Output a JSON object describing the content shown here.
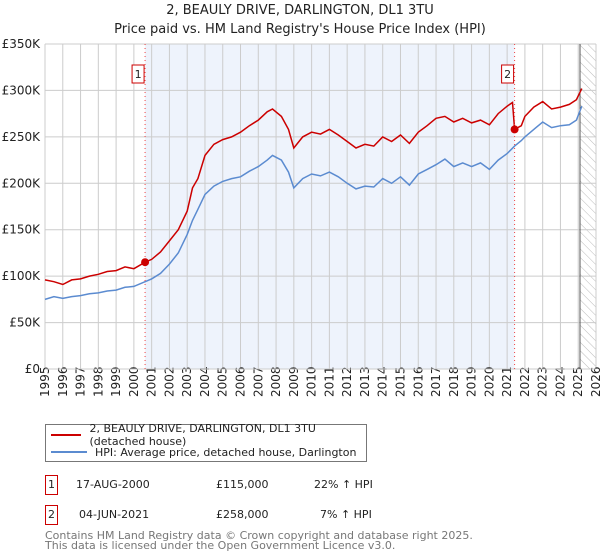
{
  "title": "2, BEAULY DRIVE, DARLINGTON, DL1 3TU",
  "subtitle": "Price paid vs. HM Land Registry's House Price Index (HPI)",
  "chart_data": {
    "type": "line",
    "xlim": [
      1995,
      2026
    ],
    "ylim": [
      0,
      350000
    ],
    "yticks": [
      0,
      50000,
      100000,
      150000,
      200000,
      250000,
      300000,
      350000
    ],
    "ytick_labels": [
      "£0",
      "£50K",
      "£100K",
      "£150K",
      "£200K",
      "£250K",
      "£300K",
      "£350K"
    ],
    "xticks": [
      "1995",
      "1996",
      "1997",
      "1998",
      "1999",
      "2000",
      "2001",
      "2002",
      "2003",
      "2004",
      "2005",
      "2006",
      "2007",
      "2008",
      "2009",
      "2010",
      "2011",
      "2012",
      "2013",
      "2014",
      "2015",
      "2016",
      "2017",
      "2018",
      "2019",
      "2020",
      "2021",
      "2022",
      "2023",
      "2024",
      "2025",
      "2026"
    ],
    "shaded_range": [
      2000.63,
      2021.42
    ],
    "hatched_from": 2025.1,
    "series": [
      {
        "name": "2, BEAULY DRIVE, DARLINGTON, DL1 3TU (detached house)",
        "color": "#cc0000",
        "points": [
          [
            1995,
            96000
          ],
          [
            1995.5,
            94000
          ],
          [
            1996,
            91000
          ],
          [
            1996.5,
            96000
          ],
          [
            1997,
            97000
          ],
          [
            1997.5,
            100000
          ],
          [
            1998,
            102000
          ],
          [
            1998.5,
            105000
          ],
          [
            1999,
            106000
          ],
          [
            1999.5,
            110000
          ],
          [
            2000,
            108000
          ],
          [
            2000.63,
            115000
          ],
          [
            2001,
            118000
          ],
          [
            2001.5,
            126000
          ],
          [
            2002,
            138000
          ],
          [
            2002.5,
            150000
          ],
          [
            2003,
            170000
          ],
          [
            2003.3,
            195000
          ],
          [
            2003.6,
            205000
          ],
          [
            2004,
            230000
          ],
          [
            2004.5,
            242000
          ],
          [
            2005,
            247000
          ],
          [
            2005.5,
            250000
          ],
          [
            2006,
            255000
          ],
          [
            2006.5,
            262000
          ],
          [
            2007,
            268000
          ],
          [
            2007.5,
            277000
          ],
          [
            2007.8,
            280000
          ],
          [
            2008.3,
            272000
          ],
          [
            2008.7,
            258000
          ],
          [
            2009,
            238000
          ],
          [
            2009.5,
            250000
          ],
          [
            2010,
            255000
          ],
          [
            2010.5,
            253000
          ],
          [
            2011,
            258000
          ],
          [
            2011.5,
            252000
          ],
          [
            2012,
            245000
          ],
          [
            2012.5,
            238000
          ],
          [
            2013,
            242000
          ],
          [
            2013.5,
            240000
          ],
          [
            2014,
            250000
          ],
          [
            2014.5,
            245000
          ],
          [
            2015,
            252000
          ],
          [
            2015.5,
            243000
          ],
          [
            2016,
            255000
          ],
          [
            2016.5,
            262000
          ],
          [
            2017,
            270000
          ],
          [
            2017.5,
            272000
          ],
          [
            2018,
            266000
          ],
          [
            2018.5,
            270000
          ],
          [
            2019,
            265000
          ],
          [
            2019.5,
            268000
          ],
          [
            2020,
            263000
          ],
          [
            2020.5,
            275000
          ],
          [
            2021,
            283000
          ],
          [
            2021.3,
            287000
          ],
          [
            2021.42,
            258000
          ],
          [
            2021.8,
            262000
          ],
          [
            2022,
            272000
          ],
          [
            2022.5,
            282000
          ],
          [
            2023,
            288000
          ],
          [
            2023.5,
            280000
          ],
          [
            2024,
            282000
          ],
          [
            2024.5,
            285000
          ],
          [
            2024.9,
            290000
          ],
          [
            2025.2,
            302000
          ]
        ]
      },
      {
        "name": "HPI: Average price, detached house, Darlington",
        "color": "#5b8bd0",
        "points": [
          [
            1995,
            75000
          ],
          [
            1995.5,
            78000
          ],
          [
            1996,
            76000
          ],
          [
            1996.5,
            78000
          ],
          [
            1997,
            79000
          ],
          [
            1997.5,
            81000
          ],
          [
            1998,
            82000
          ],
          [
            1998.5,
            84000
          ],
          [
            1999,
            85000
          ],
          [
            1999.5,
            88000
          ],
          [
            2000,
            89000
          ],
          [
            2000.63,
            94000
          ],
          [
            2001,
            97000
          ],
          [
            2001.5,
            103000
          ],
          [
            2002,
            113000
          ],
          [
            2002.5,
            125000
          ],
          [
            2003,
            145000
          ],
          [
            2003.3,
            160000
          ],
          [
            2003.6,
            172000
          ],
          [
            2004,
            188000
          ],
          [
            2004.5,
            197000
          ],
          [
            2005,
            202000
          ],
          [
            2005.5,
            205000
          ],
          [
            2006,
            207000
          ],
          [
            2006.5,
            213000
          ],
          [
            2007,
            218000
          ],
          [
            2007.5,
            225000
          ],
          [
            2007.8,
            230000
          ],
          [
            2008.3,
            225000
          ],
          [
            2008.7,
            212000
          ],
          [
            2009,
            195000
          ],
          [
            2009.5,
            205000
          ],
          [
            2010,
            210000
          ],
          [
            2010.5,
            208000
          ],
          [
            2011,
            212000
          ],
          [
            2011.5,
            207000
          ],
          [
            2012,
            200000
          ],
          [
            2012.5,
            194000
          ],
          [
            2013,
            197000
          ],
          [
            2013.5,
            196000
          ],
          [
            2014,
            205000
          ],
          [
            2014.5,
            200000
          ],
          [
            2015,
            207000
          ],
          [
            2015.5,
            198000
          ],
          [
            2016,
            210000
          ],
          [
            2016.5,
            215000
          ],
          [
            2017,
            220000
          ],
          [
            2017.5,
            226000
          ],
          [
            2018,
            218000
          ],
          [
            2018.5,
            222000
          ],
          [
            2019,
            218000
          ],
          [
            2019.5,
            222000
          ],
          [
            2020,
            215000
          ],
          [
            2020.5,
            225000
          ],
          [
            2021,
            232000
          ],
          [
            2021.42,
            240000
          ],
          [
            2021.8,
            246000
          ],
          [
            2022,
            250000
          ],
          [
            2022.5,
            258000
          ],
          [
            2023,
            266000
          ],
          [
            2023.5,
            260000
          ],
          [
            2024,
            262000
          ],
          [
            2024.5,
            263000
          ],
          [
            2024.9,
            268000
          ],
          [
            2025.2,
            283000
          ]
        ]
      }
    ],
    "sales": [
      {
        "label": "1",
        "x": 2000.63,
        "y": 115000
      },
      {
        "label": "2",
        "x": 2021.42,
        "y": 258000
      }
    ]
  },
  "legend": {
    "red_label": "2, BEAULY DRIVE, DARLINGTON, DL1 3TU (detached house)",
    "blue_label": "HPI: Average price, detached house, Darlington"
  },
  "events": [
    {
      "num": "1",
      "date": "17-AUG-2000",
      "price": "£115,000",
      "hpi": "22% ↑ HPI"
    },
    {
      "num": "2",
      "date": "04-JUN-2021",
      "price": "£258,000",
      "hpi": "7% ↑ HPI"
    }
  ],
  "footer": {
    "line1": "Contains HM Land Registry data © Crown copyright and database right 2025.",
    "line2": "This data is licensed under the Open Government Licence v3.0."
  }
}
